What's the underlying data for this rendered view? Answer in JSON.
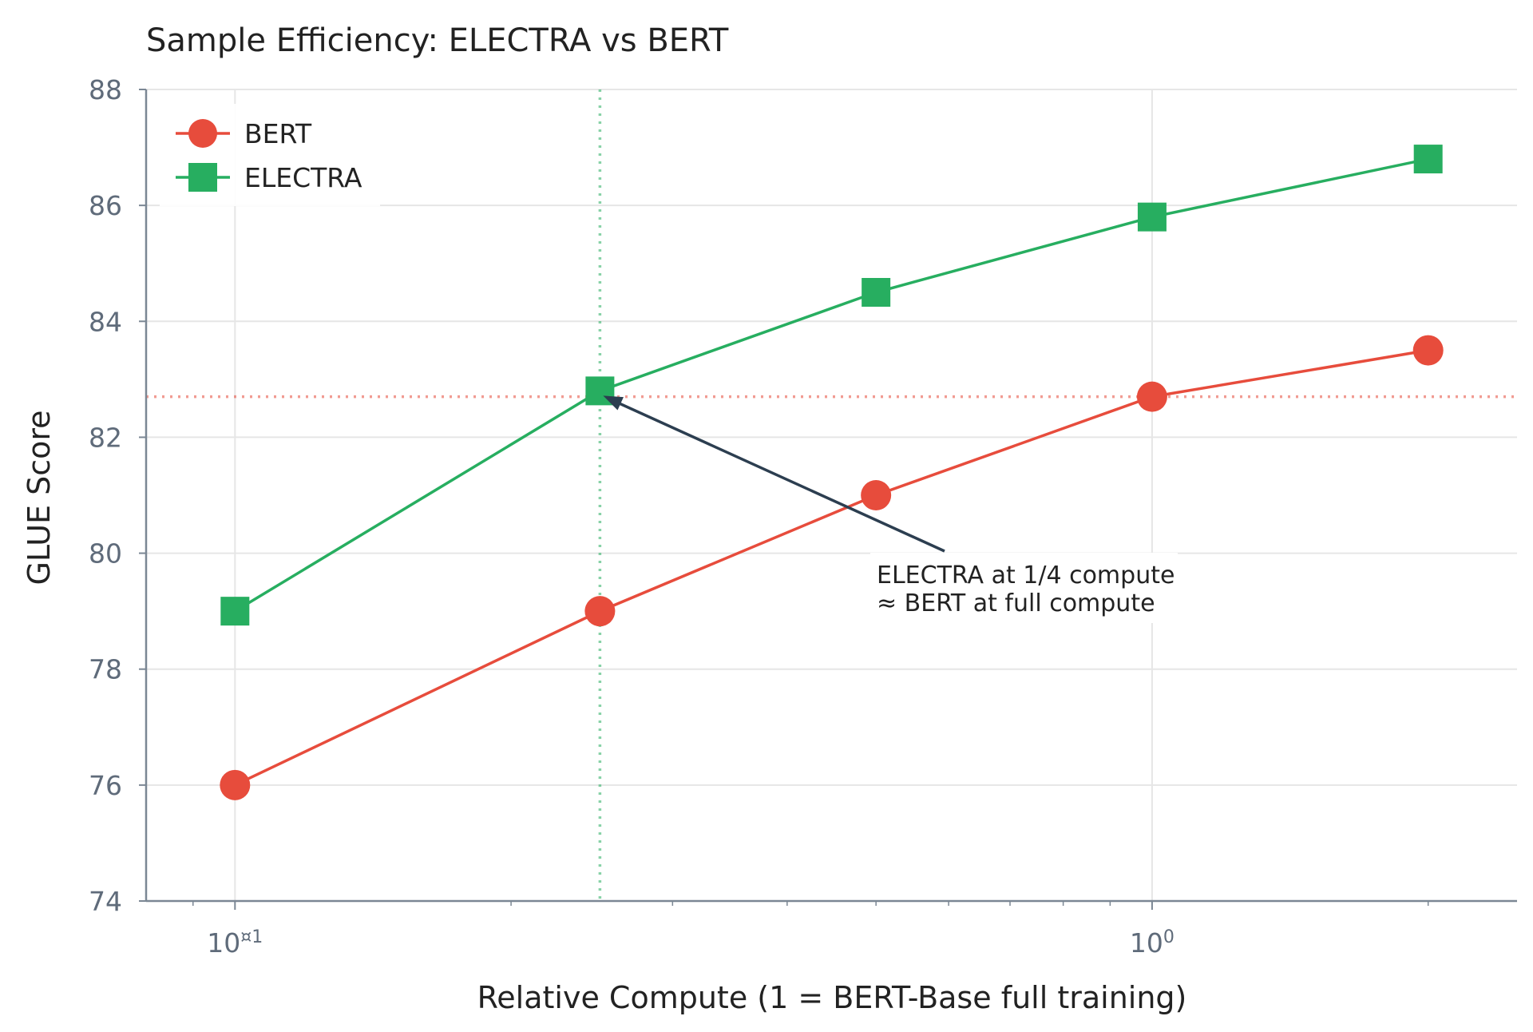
{
  "chart_data": {
    "type": "line",
    "title": "Sample Efficiency: ELECTRA vs BERT",
    "xlabel": "Relative Compute (1 = BERT-Base full training)",
    "ylabel": "GLUE Score",
    "xscale": "log",
    "xlim": [
      0.08,
      2.5
    ],
    "ylim": [
      74,
      88
    ],
    "yticks": [
      74,
      76,
      78,
      80,
      82,
      84,
      86,
      88
    ],
    "xticks": [
      {
        "value": 0.1,
        "base": "10",
        "exp": "¤1"
      },
      {
        "value": 1,
        "base": "10",
        "exp": "0"
      }
    ],
    "grid": true,
    "legend": "top-left",
    "series": [
      {
        "name": "BERT",
        "color": "#e74c3c",
        "marker": "circle",
        "x": [
          0.1,
          0.25,
          0.5,
          1,
          2
        ],
        "y": [
          76,
          79,
          81,
          82.7,
          83.5
        ]
      },
      {
        "name": "ELECTRA",
        "color": "#27ae60",
        "marker": "square",
        "x": [
          0.1,
          0.25,
          0.5,
          1,
          2
        ],
        "y": [
          79,
          82.8,
          84.5,
          85.8,
          86.8
        ]
      }
    ],
    "reference_lines": [
      {
        "orientation": "horizontal",
        "value": 82.7,
        "color": "#e74c3c"
      },
      {
        "orientation": "vertical",
        "value": 0.25,
        "color": "#27ae60"
      }
    ],
    "annotation": {
      "lines": [
        "ELECTRA at 1/4 compute",
        "≈ BERT at full compute"
      ],
      "point": {
        "x": 0.25,
        "y": 82.8
      },
      "text_pos": {
        "x": 0.63,
        "y": 79.5
      }
    }
  }
}
